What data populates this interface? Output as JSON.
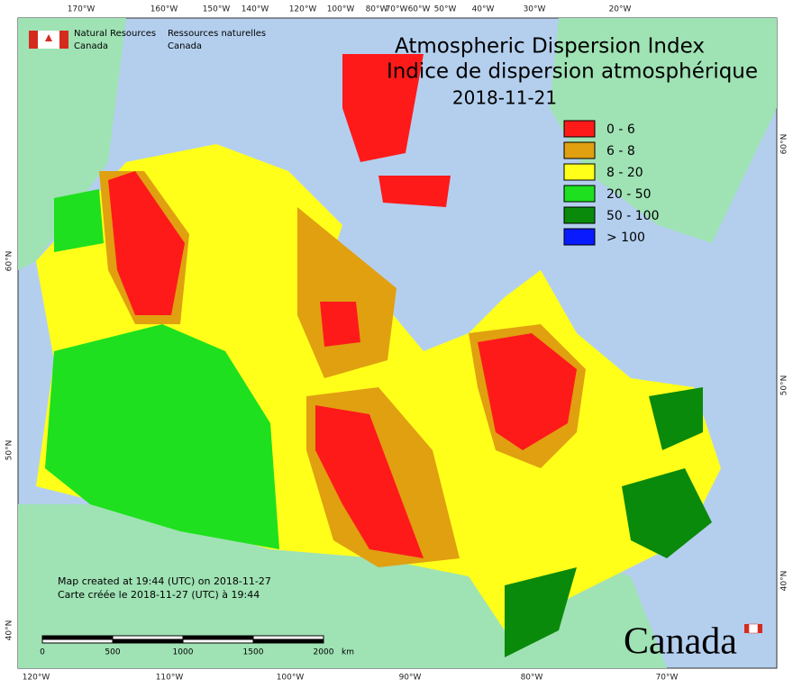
{
  "header": {
    "title_en": "Atmospheric Dispersion Index",
    "title_fr": "Indice de dispersion atmosphérique",
    "date": "2018-11-21"
  },
  "agency": {
    "en": [
      "Natural Resources",
      "Canada"
    ],
    "fr": [
      "Ressources naturelles",
      "Canada"
    ]
  },
  "legend": [
    {
      "label": "0 - 6",
      "color": "#ff1a1a"
    },
    {
      "label": "6 - 8",
      "color": "#e0a010"
    },
    {
      "label": "8 - 20",
      "color": "#ffff1a"
    },
    {
      "label": "20 - 50",
      "color": "#1ee01e"
    },
    {
      "label": "50 - 100",
      "color": "#0a8a0a"
    },
    {
      "label": "> 100",
      "color": "#0a1aff"
    }
  ],
  "graticule": {
    "top": [
      "170°W",
      "160°W",
      "150°W",
      "140°W",
      "120°W",
      "100°W",
      "80°W",
      "70°W",
      "60°W",
      "50°W",
      "40°W",
      "30°W",
      "20°W"
    ],
    "bottom": [
      "120°W",
      "110°W",
      "100°W",
      "90°W",
      "80°W",
      "70°W"
    ],
    "left": [
      "60°N",
      "50°N",
      "40°N"
    ],
    "right": [
      "60°N",
      "50°N",
      "40°N"
    ]
  },
  "credits": [
    "Map created at 19:44 (UTC) on 2018-11-27",
    "Carte créée le 2018-11-27 (UTC) à 19:44"
  ],
  "scale": {
    "ticks": [
      "0",
      "500",
      "1000",
      "1500",
      "2000"
    ],
    "unit": "km"
  },
  "wordmark": "Canada"
}
